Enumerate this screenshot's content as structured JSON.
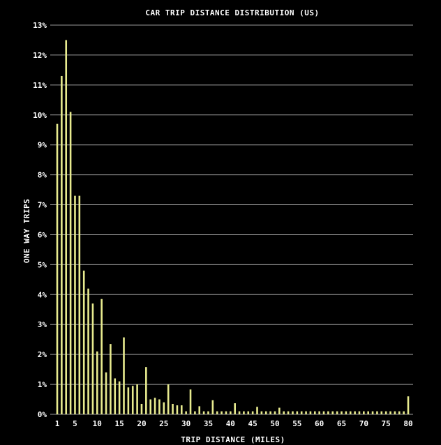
{
  "chart_data": {
    "type": "bar",
    "title": "CAR TRIP DISTANCE DISTRIBUTION (US)",
    "xlabel": "TRIP DISTANCE (MILES)",
    "ylabel": "ONE WAY TRIPS",
    "ylim": [
      0,
      13
    ],
    "y_unit": "%",
    "yticks": [
      0,
      1,
      2,
      3,
      4,
      5,
      6,
      7,
      8,
      9,
      10,
      11,
      12,
      13
    ],
    "ytick_labels": [
      "0%",
      "1%",
      "2%",
      "3%",
      "4%",
      "5%",
      "6%",
      "7%",
      "8%",
      "9%",
      "10%",
      "11%",
      "12%",
      "13%"
    ],
    "xticks": [
      1,
      5,
      10,
      15,
      20,
      25,
      30,
      35,
      40,
      45,
      50,
      55,
      60,
      65,
      70,
      75,
      80
    ],
    "xtick_labels": [
      "1",
      "5",
      "10",
      "15",
      "20",
      "25",
      "30",
      "35",
      "40",
      "45",
      "50",
      "55",
      "60",
      "65",
      "70",
      "75",
      "80"
    ],
    "grid": true,
    "colors": {
      "background": "#000000",
      "bar": "#e8eb8f",
      "grid": "#9a9a9a",
      "text": "#ffffff"
    },
    "x": [
      1,
      2,
      3,
      4,
      5,
      6,
      7,
      8,
      9,
      10,
      11,
      12,
      13,
      14,
      15,
      16,
      17,
      18,
      19,
      20,
      21,
      22,
      23,
      24,
      25,
      26,
      27,
      28,
      29,
      30,
      31,
      32,
      33,
      34,
      35,
      36,
      37,
      38,
      39,
      40,
      41,
      42,
      43,
      44,
      45,
      46,
      47,
      48,
      49,
      50,
      51,
      52,
      53,
      54,
      55,
      56,
      57,
      58,
      59,
      60,
      61,
      62,
      63,
      64,
      65,
      66,
      67,
      68,
      69,
      70,
      71,
      72,
      73,
      74,
      75,
      76,
      77,
      78,
      79,
      80
    ],
    "values": [
      9.7,
      11.3,
      12.5,
      10.1,
      7.3,
      7.3,
      4.8,
      4.2,
      3.7,
      2.1,
      3.85,
      1.4,
      2.35,
      1.2,
      1.1,
      2.57,
      0.9,
      0.95,
      1.0,
      0.35,
      1.58,
      0.5,
      0.55,
      0.5,
      0.4,
      1.0,
      0.35,
      0.3,
      0.3,
      0.1,
      0.83,
      0.1,
      0.27,
      0.1,
      0.1,
      0.47,
      0.1,
      0.1,
      0.1,
      0.1,
      0.37,
      0.1,
      0.1,
      0.1,
      0.1,
      0.25,
      0.1,
      0.1,
      0.1,
      0.1,
      0.22,
      0.1,
      0.1,
      0.1,
      0.1,
      0.1,
      0.1,
      0.1,
      0.1,
      0.1,
      0.1,
      0.1,
      0.1,
      0.1,
      0.1,
      0.1,
      0.1,
      0.1,
      0.1,
      0.1,
      0.1,
      0.1,
      0.1,
      0.1,
      0.1,
      0.1,
      0.1,
      0.1,
      0.1,
      0.6
    ]
  }
}
